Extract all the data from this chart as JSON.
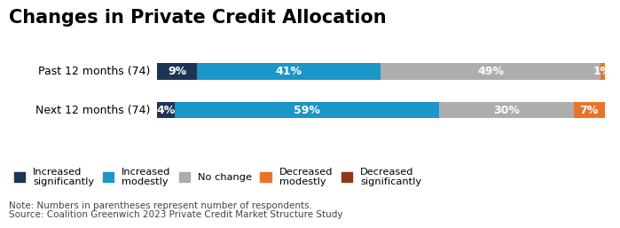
{
  "title": "Changes in Private Credit Allocation",
  "categories": [
    "Past 12 months (74)",
    "Next 12 months (74)"
  ],
  "series": [
    {
      "label": "Increased\nsignificantly",
      "values": [
        9,
        4
      ],
      "color": "#1c3557"
    },
    {
      "label": "Increased\nmodestly",
      "values": [
        41,
        59
      ],
      "color": "#1a96c8"
    },
    {
      "label": "No change",
      "values": [
        49,
        30
      ],
      "color": "#adadad"
    },
    {
      "label": "Decreased\nmodestly",
      "values": [
        1,
        7
      ],
      "color": "#e8742a"
    },
    {
      "label": "Decreased\nsignificantly",
      "values": [
        0,
        0
      ],
      "color": "#8b3a1a"
    }
  ],
  "note_line1": "Note: Numbers in parentheses represent number of respondents.",
  "note_line2": "Source: Coalition Greenwich 2023 Private Credit Market Structure Study",
  "title_fontsize": 15,
  "bar_label_fontsize": 9,
  "axis_label_fontsize": 9,
  "note_fontsize": 7.5,
  "legend_fontsize": 8.2,
  "background_color": "#ffffff"
}
